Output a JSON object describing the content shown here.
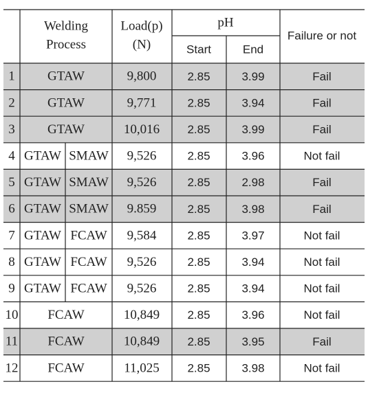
{
  "header": {
    "no": "",
    "welding": [
      "Welding",
      "Process"
    ],
    "load": [
      "Load(p)",
      "(N)"
    ],
    "ph": "pH",
    "start": "Start",
    "end": "End",
    "failure": "Failure or not"
  },
  "rows": [
    {
      "no": "1",
      "process": [
        "GTAW"
      ],
      "load": "9,800",
      "start": "2.85",
      "end": "3.99",
      "failure": "Fail",
      "shaded": true
    },
    {
      "no": "2",
      "process": [
        "GTAW"
      ],
      "load": "9,771",
      "start": "2.85",
      "end": "3.94",
      "failure": "Fail",
      "shaded": true
    },
    {
      "no": "3",
      "process": [
        "GTAW"
      ],
      "load": "10,016",
      "start": "2.85",
      "end": "3.99",
      "failure": "Fail",
      "shaded": true
    },
    {
      "no": "4",
      "process": [
        "GTAW",
        "SMAW"
      ],
      "load": "9,526",
      "start": "2.85",
      "end": "3.96",
      "failure": "Not fail",
      "shaded": false
    },
    {
      "no": "5",
      "process": [
        "GTAW",
        "SMAW"
      ],
      "load": "9,526",
      "start": "2.85",
      "end": "2.98",
      "failure": "Fail",
      "shaded": true
    },
    {
      "no": "6",
      "process": [
        "GTAW",
        "SMAW"
      ],
      "load": "9.859",
      "start": "2.85",
      "end": "3.98",
      "failure": "Fail",
      "shaded": true
    },
    {
      "no": "7",
      "process": [
        "GTAW",
        "FCAW"
      ],
      "load": "9,584",
      "start": "2.85",
      "end": "3.97",
      "failure": "Not fail",
      "shaded": false
    },
    {
      "no": "8",
      "process": [
        "GTAW",
        "FCAW"
      ],
      "load": "9,526",
      "start": "2.85",
      "end": "3.94",
      "failure": "Not fail",
      "shaded": false
    },
    {
      "no": "9",
      "process": [
        "GTAW",
        "FCAW"
      ],
      "load": "9,526",
      "start": "2.85",
      "end": "3.94",
      "failure": "Not fail",
      "shaded": false
    },
    {
      "no": "10",
      "process": [
        "FCAW"
      ],
      "load": "10,849",
      "start": "2.85",
      "end": "3.96",
      "failure": "Not fail",
      "shaded": false
    },
    {
      "no": "11",
      "process": [
        "FCAW"
      ],
      "load": "10,849",
      "start": "2.85",
      "end": "3.95",
      "failure": "Fail",
      "shaded": true
    },
    {
      "no": "12",
      "process": [
        "FCAW"
      ],
      "load": "11,025",
      "start": "2.85",
      "end": "3.98",
      "failure": "Not fail",
      "shaded": false
    }
  ]
}
